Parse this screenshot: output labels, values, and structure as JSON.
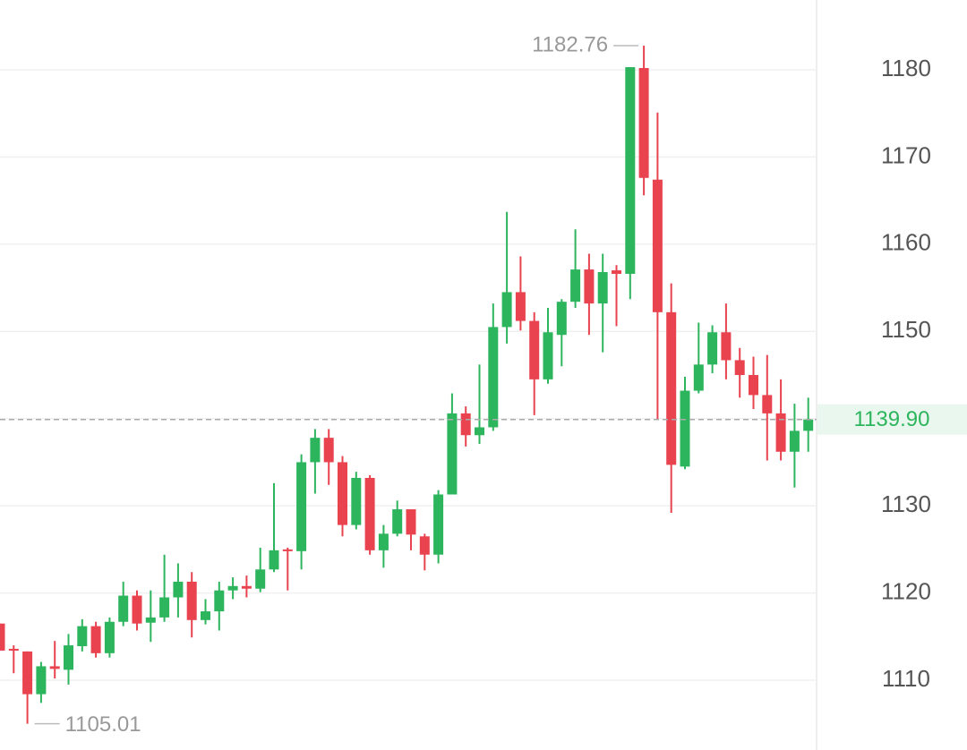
{
  "chart_data": {
    "type": "candlestick",
    "up_color": "#2db55d",
    "down_color": "#e8434f",
    "ylim": [
      1102,
      1188
    ],
    "yticks": [
      1110,
      1120,
      1130,
      1140,
      1150,
      1160,
      1170,
      1180
    ],
    "grid": true,
    "current_price": {
      "value": 1139.9,
      "label": "1139.90"
    },
    "open": [
      1116.5,
      1113.6,
      1113.3,
      1108.4,
      1111.6,
      1111.2,
      1113.9,
      1116.2,
      1113.1,
      1116.7,
      1119.7,
      1116.6,
      1117.2,
      1119.5,
      1121.3,
      1116.9,
      1117.9,
      1120.3,
      1120.8,
      1120.5,
      1122.7,
      1125.0,
      1124.8,
      1135.0,
      1137.8,
      1135.0,
      1127.8,
      1133.2,
      1124.9,
      1126.8,
      1129.6,
      1126.5,
      1124.4,
      1131.3,
      1140.6,
      1138.1,
      1139.0,
      1150.5,
      1154.5,
      1151.2,
      1144.5,
      1149.6,
      1153.4,
      1157.1,
      1153.2,
      1157.0,
      1156.6,
      1180.2,
      1167.4,
      1152.2,
      1134.5,
      1143.2,
      1146.2,
      1149.9,
      1146.7,
      1145.0,
      1142.7,
      1140.6,
      1136.2,
      1138.6
    ],
    "high": [
      1116.5,
      1114.0,
      1113.3,
      1112.1,
      1114.5,
      1115.3,
      1117.0,
      1116.7,
      1117.2,
      1121.3,
      1120.3,
      1120.3,
      1124.4,
      1123.4,
      1122.4,
      1119.3,
      1121.3,
      1121.8,
      1122.0,
      1125.2,
      1132.6,
      1125.2,
      1135.9,
      1138.8,
      1138.8,
      1135.7,
      1133.9,
      1133.5,
      1127.8,
      1130.6,
      1129.6,
      1126.8,
      1131.8,
      1142.9,
      1141.4,
      1146.2,
      1153.2,
      1163.7,
      1158.6,
      1152.2,
      1152.7,
      1153.7,
      1161.7,
      1158.9,
      1158.9,
      1157.6,
      1180.3,
      1182.76,
      1175.1,
      1155.5,
      1144.8,
      1151.0,
      1150.7,
      1153.2,
      1148.1,
      1147.1,
      1147.3,
      1144.5,
      1141.7,
      1142.4
    ],
    "low": [
      1113.4,
      1110.8,
      1105.01,
      1107.4,
      1110.2,
      1109.5,
      1113.3,
      1112.6,
      1112.6,
      1116.2,
      1115.7,
      1114.4,
      1116.7,
      1117.2,
      1114.9,
      1116.4,
      1115.7,
      1119.3,
      1119.5,
      1120.1,
      1122.4,
      1120.3,
      1122.7,
      1131.4,
      1132.4,
      1126.5,
      1127.3,
      1124.4,
      1122.9,
      1126.5,
      1124.9,
      1122.6,
      1123.4,
      1131.3,
      1136.8,
      1137.1,
      1138.6,
      1148.6,
      1150.1,
      1140.4,
      1144.0,
      1146.0,
      1152.7,
      1149.6,
      1147.6,
      1150.6,
      1153.7,
      1165.6,
      1139.9,
      1129.2,
      1134.2,
      1142.9,
      1145.2,
      1144.5,
      1142.4,
      1141.1,
      1135.2,
      1135.2,
      1132.1,
      1136.2
    ],
    "close": [
      1113.4,
      1113.4,
      1108.4,
      1111.6,
      1111.3,
      1114.0,
      1116.2,
      1113.1,
      1116.7,
      1119.7,
      1116.5,
      1117.2,
      1119.5,
      1121.3,
      1116.9,
      1117.9,
      1120.3,
      1120.8,
      1120.5,
      1122.7,
      1124.9,
      1124.8,
      1135.0,
      1137.8,
      1135.0,
      1127.8,
      1133.2,
      1124.9,
      1126.8,
      1129.6,
      1126.7,
      1124.4,
      1131.3,
      1140.6,
      1138.1,
      1139.0,
      1150.5,
      1154.5,
      1151.2,
      1144.5,
      1149.9,
      1153.4,
      1157.1,
      1153.2,
      1156.8,
      1156.6,
      1180.3,
      1167.6,
      1152.2,
      1134.7,
      1143.2,
      1146.2,
      1149.9,
      1146.7,
      1145.0,
      1142.7,
      1140.6,
      1136.2,
      1138.6,
      1139.9
    ]
  }
}
